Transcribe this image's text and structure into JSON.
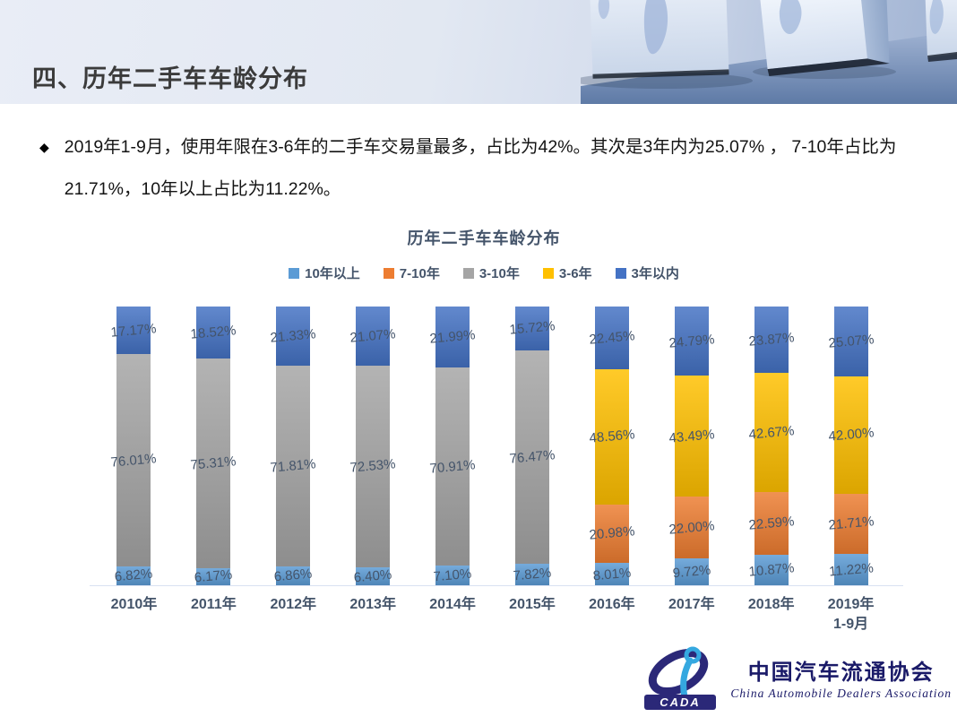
{
  "header": {
    "title": "四、历年二手车车龄分布"
  },
  "bullet": {
    "text": "2019年1-9月，使用年限在3-6年的二手车交易量最多，占比为42%。其次是3年内为25.07% ， 7-10年占比为21.71%，10年以上占比为11.22%。"
  },
  "chart_data": {
    "type": "bar",
    "stacked": true,
    "title": "历年二手车车龄分布",
    "categories": [
      "2010年",
      "2011年",
      "2012年",
      "2013年",
      "2014年",
      "2015年",
      "2016年",
      "2017年",
      "2018年",
      "2019年\n1-9月"
    ],
    "series": [
      {
        "name": "10年以上",
        "color": "#5B9BD5",
        "values": [
          6.82,
          6.17,
          6.86,
          6.4,
          7.1,
          7.82,
          8.01,
          9.72,
          10.87,
          11.22
        ]
      },
      {
        "name": "7-10年",
        "color": "#ED7D31",
        "values": [
          null,
          null,
          null,
          null,
          null,
          null,
          20.98,
          22.0,
          22.59,
          21.71
        ]
      },
      {
        "name": "3-10年",
        "color": "#A5A5A5",
        "values": [
          76.01,
          75.31,
          71.81,
          72.53,
          70.91,
          76.47,
          null,
          null,
          null,
          null
        ]
      },
      {
        "name": "3-6年",
        "color": "#FFC000",
        "values": [
          null,
          null,
          null,
          null,
          null,
          null,
          48.56,
          43.49,
          42.67,
          42.0
        ]
      },
      {
        "name": "3年以内",
        "color": "#4472C4",
        "values": [
          17.17,
          18.52,
          21.33,
          21.07,
          21.99,
          15.72,
          22.45,
          24.79,
          23.87,
          25.07
        ]
      }
    ],
    "ylim": [
      0,
      100
    ],
    "legend_position": "top",
    "grid": false,
    "label_format": "0.00%",
    "label_color": "#44546A",
    "axis_label_color": "#44546A"
  },
  "logo": {
    "cn": "中国汽车流通协会",
    "en": "China  Automobile  Dealers  Association",
    "mark": "CADA"
  }
}
